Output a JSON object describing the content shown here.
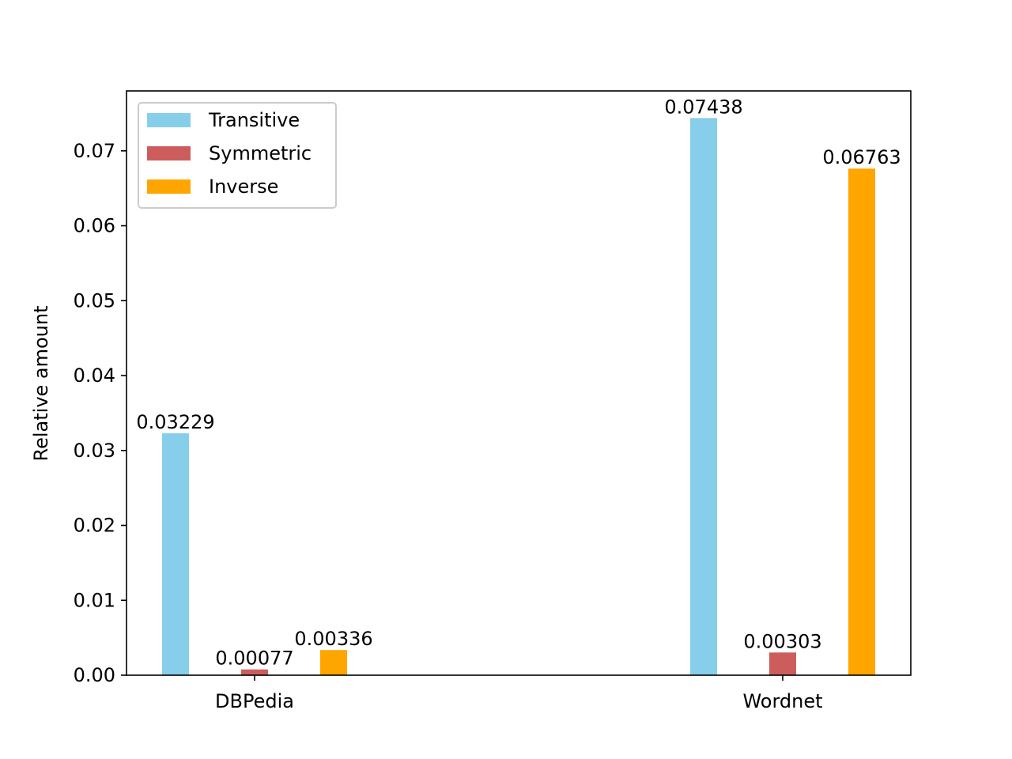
{
  "chart_data": {
    "type": "bar",
    "categories": [
      "DBPedia",
      "Wordnet"
    ],
    "series": [
      {
        "name": "Transitive",
        "values": [
          0.03229,
          0.07438
        ],
        "color": "#87CEEB",
        "labels": [
          "0.03229",
          "0.07438"
        ]
      },
      {
        "name": "Symmetric",
        "values": [
          0.00077,
          0.00303
        ],
        "color": "#CD5C5C",
        "labels": [
          "0.00077",
          "0.00303"
        ]
      },
      {
        "name": "Inverse",
        "values": [
          0.00336,
          0.06763
        ],
        "color": "#FFA500",
        "labels": [
          "0.00336",
          "0.06763"
        ]
      }
    ],
    "title": "",
    "xlabel": "",
    "ylabel": "Relative amount",
    "ylim": [
      0,
      0.078
    ],
    "yticks": [
      0.0,
      0.01,
      0.02,
      0.03,
      0.04,
      0.05,
      0.06,
      0.07
    ],
    "ytick_labels": [
      "0.00",
      "0.01",
      "0.02",
      "0.03",
      "0.04",
      "0.05",
      "0.06",
      "0.07"
    ],
    "grid": false,
    "legend_position": "top-left"
  }
}
